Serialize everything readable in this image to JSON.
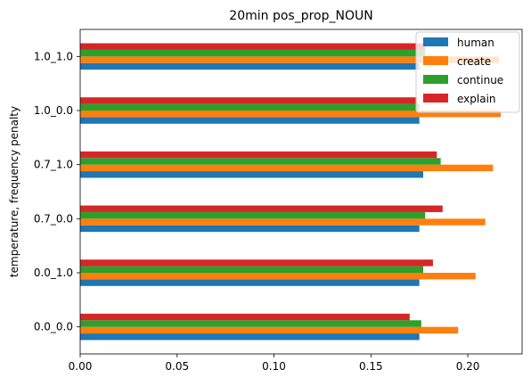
{
  "chart_data": {
    "type": "bar",
    "orientation": "horizontal",
    "title": "20min pos_prop_NOUN",
    "xlabel": "",
    "ylabel": "temperature, frequency penalty",
    "xlim": [
      0,
      0.228
    ],
    "xticks": [
      0.0,
      0.05,
      0.1,
      0.15,
      0.2
    ],
    "xtick_labels": [
      "0.00",
      "0.05",
      "0.10",
      "0.15",
      "0.20"
    ],
    "categories": [
      "0.0_0.0",
      "0.0_1.0",
      "0.7_0.0",
      "0.7_1.0",
      "1.0_0.0",
      "1.0_1.0"
    ],
    "series": [
      {
        "name": "human",
        "color": "#1f77b4",
        "values": [
          0.175,
          0.175,
          0.175,
          0.177,
          0.175,
          0.175
        ]
      },
      {
        "name": "create",
        "color": "#ff7f0e",
        "values": [
          0.195,
          0.204,
          0.209,
          0.213,
          0.217,
          0.216
        ]
      },
      {
        "name": "continue",
        "color": "#2ca02c",
        "values": [
          0.176,
          0.177,
          0.178,
          0.186,
          0.175,
          0.178
        ]
      },
      {
        "name": "explain",
        "color": "#d62728",
        "values": [
          0.17,
          0.182,
          0.187,
          0.184,
          0.174,
          0.178
        ]
      }
    ],
    "legend": {
      "placement": "top-right",
      "labels": [
        "human",
        "create",
        "continue",
        "explain"
      ]
    },
    "grid": false
  }
}
